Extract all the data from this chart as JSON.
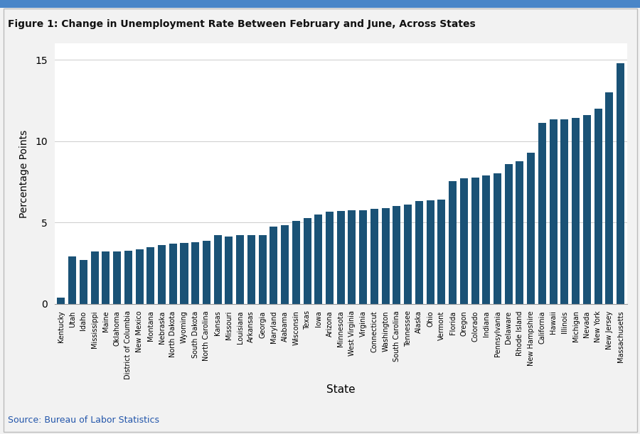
{
  "title": "Figure 1: Change in Unemployment Rate Between February and June, Across States",
  "xlabel": "State",
  "ylabel": "Percentage Points",
  "source": "Source: Bureau of Labor Statistics",
  "bar_color": "#1a5276",
  "fig_bg": "#f2f2f2",
  "plot_bg": "#ffffff",
  "border_color": "#4a86c8",
  "ylim": [
    0,
    16
  ],
  "yticks": [
    0,
    5,
    10,
    15
  ],
  "categories": [
    "Kentucky",
    "Utah",
    "Idaho",
    "Mississippi",
    "Maine",
    "Oklahoma",
    "District of Columbia",
    "New Mexico",
    "Montana",
    "Nebraska",
    "North Dakota",
    "Wyoming",
    "South Dakota",
    "North Carolina",
    "Kansas",
    "Missouri",
    "Louisiana",
    "Arkansas",
    "Georgia",
    "Maryland",
    "Alabama",
    "Wisconsin",
    "Texas",
    "Iowa",
    "Arizona",
    "Minnesota",
    "West Virginia",
    "Virginia",
    "Connecticut",
    "Washington",
    "South Carolina",
    "Tennessee",
    "Alaska",
    "Ohio",
    "Vermont",
    "Florida",
    "Oregon",
    "Colorado",
    "Indiana",
    "Pennsylvania",
    "Delaware",
    "Rhode Island",
    "New Hampshire",
    "California",
    "Hawaii",
    "Illinois",
    "Michigan",
    "Nevada",
    "New York",
    "New Jersey",
    "Massachusetts"
  ],
  "values": [
    0.4,
    2.9,
    2.7,
    3.2,
    3.2,
    3.2,
    3.25,
    3.35,
    3.5,
    3.6,
    3.7,
    3.75,
    3.8,
    3.85,
    4.2,
    4.15,
    4.2,
    4.2,
    4.2,
    4.75,
    4.85,
    5.1,
    5.25,
    5.5,
    5.65,
    5.7,
    5.75,
    5.75,
    5.85,
    5.9,
    6.0,
    6.1,
    6.3,
    6.35,
    6.4,
    7.55,
    7.7,
    7.75,
    7.9,
    8.0,
    8.6,
    8.75,
    9.3,
    11.1,
    11.35,
    11.35,
    11.4,
    11.6,
    12.0,
    13.0,
    14.8
  ]
}
